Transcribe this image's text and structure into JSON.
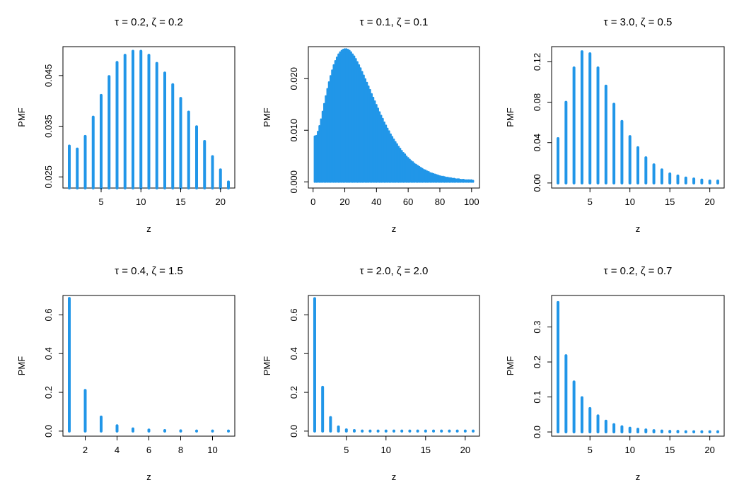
{
  "colors": {
    "bars": "#2196e8",
    "axes": "#000000",
    "background": "#ffffff"
  },
  "chart_data": [
    {
      "type": "bar",
      "title": "τ = 0.2, ζ = 0.2",
      "xlabel": "z",
      "ylabel": "PMF",
      "x_range": [
        1,
        21
      ],
      "xlim": [
        0.2,
        21.8
      ],
      "ylim": [
        0.0228,
        0.0507
      ],
      "xticks": [
        5,
        10,
        15,
        20
      ],
      "xtick_labels": [
        "5",
        "10",
        "15",
        "20"
      ],
      "yticks": [
        0.025,
        0.035,
        0.045
      ],
      "ytick_labels": [
        "0.025",
        "0.035",
        "0.045"
      ],
      "x": [
        1,
        2,
        3,
        4,
        5,
        6,
        7,
        8,
        9,
        10,
        11,
        12,
        13,
        14,
        15,
        16,
        17,
        18,
        19,
        20,
        21
      ],
      "values": [
        0.0311,
        0.0305,
        0.033,
        0.0368,
        0.0411,
        0.0448,
        0.0476,
        0.049,
        0.0498,
        0.0498,
        0.049,
        0.0474,
        0.0455,
        0.0432,
        0.0405,
        0.0378,
        0.0349,
        0.032,
        0.029,
        0.0264,
        0.024
      ]
    },
    {
      "type": "bar",
      "title": "τ = 0.1, ζ = 0.1",
      "xlabel": "z",
      "ylabel": "PMF",
      "x_range": [
        1,
        101
      ],
      "xlim": [
        -3,
        105
      ],
      "ylim": [
        -0.0012,
        0.0262
      ],
      "xticks": [
        0,
        20,
        40,
        60,
        80,
        100
      ],
      "xtick_labels": [
        "0",
        "20",
        "40",
        "60",
        "80",
        "100"
      ],
      "yticks": [
        0.0,
        0.01,
        0.02
      ],
      "ytick_labels": [
        "0.000",
        "0.010",
        "0.020"
      ],
      "x": [
        1,
        2,
        3,
        4,
        5,
        6,
        7,
        8,
        9,
        10,
        11,
        12,
        13,
        14,
        15,
        16,
        17,
        18,
        19,
        20,
        21,
        22,
        23,
        24,
        25,
        26,
        27,
        28,
        29,
        30,
        31,
        32,
        33,
        34,
        35,
        36,
        37,
        38,
        39,
        40,
        41,
        42,
        43,
        44,
        45,
        46,
        47,
        48,
        49,
        50,
        51,
        52,
        53,
        54,
        55,
        56,
        57,
        58,
        59,
        60,
        61,
        62,
        63,
        64,
        65,
        66,
        67,
        68,
        69,
        70,
        71,
        72,
        73,
        74,
        75,
        76,
        77,
        78,
        79,
        80,
        81,
        82,
        83,
        84,
        85,
        86,
        87,
        88,
        89,
        90,
        91,
        92,
        93,
        94,
        95,
        96,
        97,
        98,
        99,
        100,
        101
      ],
      "values": [
        0.0088,
        0.0089,
        0.0097,
        0.0108,
        0.0121,
        0.0136,
        0.0151,
        0.0166,
        0.018,
        0.0193,
        0.0205,
        0.0216,
        0.0226,
        0.0234,
        0.0241,
        0.0247,
        0.0251,
        0.0254,
        0.0256,
        0.0257,
        0.0257,
        0.0256,
        0.0254,
        0.0251,
        0.0247,
        0.0243,
        0.0238,
        0.0232,
        0.0226,
        0.022,
        0.0213,
        0.0206,
        0.0199,
        0.0192,
        0.0185,
        0.0178,
        0.017,
        0.0163,
        0.0156,
        0.0149,
        0.0142,
        0.0135,
        0.0128,
        0.0122,
        0.0115,
        0.0109,
        0.0103,
        0.0098,
        0.0092,
        0.0087,
        0.0082,
        0.0077,
        0.0073,
        0.0068,
        0.0064,
        0.006,
        0.0056,
        0.0053,
        0.0049,
        0.0046,
        0.0043,
        0.004,
        0.0038,
        0.0035,
        0.0033,
        0.0031,
        0.0029,
        0.0027,
        0.0025,
        0.0023,
        0.0022,
        0.002,
        0.0019,
        0.0017,
        0.0016,
        0.0015,
        0.0014,
        0.0013,
        0.0012,
        0.0011,
        0.001,
        0.001,
        0.0009,
        0.0008,
        0.0008,
        0.0007,
        0.0007,
        0.0006,
        0.0006,
        0.0005,
        0.0005,
        0.0005,
        0.0004,
        0.0004,
        0.0004,
        0.0003,
        0.0003,
        0.0003,
        0.0003,
        0.0003,
        0.0002
      ]
    },
    {
      "type": "bar",
      "title": "τ = 3.0, ζ = 0.5",
      "xlabel": "z",
      "ylabel": "PMF",
      "x_range": [
        1,
        21
      ],
      "xlim": [
        0.2,
        21.8
      ],
      "ylim": [
        -0.005,
        0.135
      ],
      "xticks": [
        5,
        10,
        15,
        20
      ],
      "xtick_labels": [
        "5",
        "10",
        "15",
        "20"
      ],
      "yticks": [
        0.0,
        0.04,
        0.08,
        0.12
      ],
      "ytick_labels": [
        "0.00",
        "0.04",
        "0.08",
        "0.12"
      ],
      "x": [
        1,
        2,
        3,
        4,
        5,
        6,
        7,
        8,
        9,
        10,
        11,
        12,
        13,
        14,
        15,
        16,
        17,
        18,
        19,
        20,
        21
      ],
      "values": [
        0.044,
        0.08,
        0.114,
        0.13,
        0.128,
        0.114,
        0.096,
        0.078,
        0.061,
        0.046,
        0.035,
        0.025,
        0.018,
        0.013,
        0.009,
        0.007,
        0.005,
        0.004,
        0.003,
        0.002,
        0.002
      ]
    },
    {
      "type": "bar",
      "title": "τ = 0.4, ζ = 1.5",
      "xlabel": "z",
      "ylabel": "PMF",
      "x_range": [
        1,
        11
      ],
      "xlim": [
        0.6,
        11.4
      ],
      "ylim": [
        -0.026,
        0.7
      ],
      "xticks": [
        2,
        4,
        6,
        8,
        10
      ],
      "xtick_labels": [
        "2",
        "4",
        "6",
        "8",
        "10"
      ],
      "yticks": [
        0.0,
        0.2,
        0.4,
        0.6
      ],
      "ytick_labels": [
        "0.0",
        "0.2",
        "0.4",
        "0.6"
      ],
      "x": [
        1,
        2,
        3,
        4,
        5,
        6,
        7,
        8,
        9,
        10,
        11
      ],
      "values": [
        0.685,
        0.21,
        0.073,
        0.028,
        0.012,
        0.006,
        0.003,
        0.002,
        0.001,
        0.001,
        0.001
      ]
    },
    {
      "type": "bar",
      "title": "τ = 2.0, ζ = 2.0",
      "xlabel": "z",
      "ylabel": "PMF",
      "x_range": [
        1,
        21
      ],
      "xlim": [
        0.2,
        21.8
      ],
      "ylim": [
        -0.026,
        0.7
      ],
      "xticks": [
        5,
        10,
        15,
        20
      ],
      "xtick_labels": [
        "5",
        "10",
        "15",
        "20"
      ],
      "yticks": [
        0.0,
        0.2,
        0.4,
        0.6
      ],
      "ytick_labels": [
        "0.0",
        "0.2",
        "0.4",
        "0.6"
      ],
      "x": [
        1,
        2,
        3,
        4,
        5,
        6,
        7,
        8,
        9,
        10,
        11,
        12,
        13,
        14,
        15,
        16,
        17,
        18,
        19,
        20,
        21
      ],
      "values": [
        0.684,
        0.226,
        0.07,
        0.022,
        0.007,
        0.003,
        0.001,
        0.001,
        0.001,
        0.001,
        0.001,
        0.001,
        0.001,
        0.001,
        0.001,
        0.001,
        0.001,
        0.001,
        0.001,
        0.001,
        0.001
      ]
    },
    {
      "type": "bar",
      "title": "τ = 0.2, ζ = 0.7",
      "xlabel": "z",
      "ylabel": "PMF",
      "x_range": [
        1,
        21
      ],
      "xlim": [
        0.2,
        21.8
      ],
      "ylim": [
        -0.012,
        0.39
      ],
      "xticks": [
        5,
        10,
        15,
        20
      ],
      "xtick_labels": [
        "5",
        "10",
        "15",
        "20"
      ],
      "yticks": [
        0.0,
        0.1,
        0.2,
        0.3
      ],
      "ytick_labels": [
        "0.0",
        "0.1",
        "0.2",
        "0.3"
      ],
      "x": [
        1,
        2,
        3,
        4,
        5,
        6,
        7,
        8,
        9,
        10,
        11,
        12,
        13,
        14,
        15,
        16,
        17,
        18,
        19,
        20,
        21
      ],
      "values": [
        0.37,
        0.218,
        0.143,
        0.098,
        0.067,
        0.046,
        0.031,
        0.021,
        0.015,
        0.011,
        0.008,
        0.006,
        0.004,
        0.003,
        0.002,
        0.002,
        0.001,
        0.001,
        0.001,
        0.001,
        0.001
      ]
    }
  ]
}
